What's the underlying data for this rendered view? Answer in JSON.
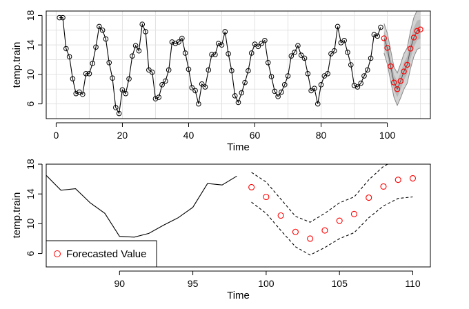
{
  "chart_data": [
    {
      "type": "line",
      "title": "",
      "xlabel": "Time",
      "ylabel": "temp.train",
      "xlim": [
        -3,
        113
      ],
      "ylim": [
        4,
        18.6
      ],
      "xticks": [
        0,
        20,
        40,
        60,
        80,
        100
      ],
      "yticks": [
        6,
        10,
        14,
        18
      ],
      "grid": true,
      "series": [
        {
          "name": "observed",
          "color": "#000000",
          "x": [
            1,
            2,
            3,
            4,
            5,
            6,
            7,
            8,
            9,
            10,
            11,
            12,
            13,
            14,
            15,
            16,
            17,
            18,
            19,
            20,
            21,
            22,
            23,
            24,
            25,
            26,
            27,
            28,
            29,
            30,
            31,
            32,
            33,
            34,
            35,
            36,
            37,
            38,
            39,
            40,
            41,
            42,
            43,
            44,
            45,
            46,
            47,
            48,
            49,
            50,
            51,
            52,
            53,
            54,
            55,
            56,
            57,
            58,
            59,
            60,
            61,
            62,
            63,
            64,
            65,
            66,
            67,
            68,
            69,
            70,
            71,
            72,
            73,
            74,
            75,
            76,
            77,
            78,
            79,
            80,
            81,
            82,
            83,
            84,
            85,
            86,
            87,
            88,
            89,
            90,
            91,
            92,
            93,
            94,
            95,
            96,
            97,
            98
          ],
          "y": [
            17.7,
            17.7,
            13.5,
            12.4,
            9.4,
            7.4,
            7.6,
            7.3,
            10.1,
            10.1,
            11.5,
            13.7,
            16.5,
            16.0,
            14.8,
            11.6,
            9.5,
            5.5,
            4.7,
            7.9,
            7.4,
            9.4,
            12.5,
            13.9,
            13.2,
            16.8,
            15.8,
            10.6,
            10.3,
            6.7,
            6.9,
            8.6,
            9.1,
            10.6,
            14.4,
            14.2,
            14.4,
            14.9,
            12.9,
            10.7,
            8.2,
            7.8,
            6.0,
            8.7,
            8.3,
            10.6,
            12.7,
            12.7,
            14.2,
            14.0,
            15.8,
            12.8,
            10.5,
            7.1,
            6.2,
            7.5,
            8.9,
            10.5,
            12.9,
            14.1,
            13.8,
            14.2,
            14.6,
            11.6,
            9.7,
            7.7,
            7.0,
            7.6,
            8.6,
            9.8,
            12.5,
            13.0,
            13.9,
            12.6,
            12.2,
            10.1,
            7.8,
            8.1,
            6.0,
            8.6,
            9.8,
            10.1,
            12.8,
            13.2,
            16.5,
            14.3,
            14.6,
            13.0,
            11.3,
            8.5,
            8.3,
            8.8,
            9.8,
            10.6,
            12.2,
            15.4,
            15.2,
            16.4
          ]
        },
        {
          "name": "Forecasted Value",
          "color": "#ff0000",
          "x": [
            99,
            100,
            101,
            102,
            103,
            104,
            105,
            106,
            107,
            108,
            109,
            110
          ],
          "y": [
            14.9,
            13.6,
            11.1,
            8.9,
            8.0,
            9.1,
            10.4,
            11.3,
            13.5,
            15.0,
            15.9,
            16.1
          ]
        },
        {
          "name": "lower bound",
          "color": "#000000",
          "x": [
            99,
            100,
            101,
            102,
            103,
            104,
            105,
            106,
            107,
            108,
            109,
            110
          ],
          "y": [
            12.9,
            11.4,
            9.1,
            6.9,
            5.8,
            6.8,
            8.0,
            8.8,
            10.8,
            12.4,
            13.4,
            13.6
          ]
        },
        {
          "name": "upper bound",
          "color": "#000000",
          "x": [
            99,
            100,
            101,
            102,
            103,
            104,
            105,
            106,
            107,
            108,
            109,
            110
          ],
          "y": [
            16.9,
            15.6,
            13.3,
            11.0,
            10.2,
            11.4,
            12.8,
            13.6,
            15.9,
            17.7,
            18.7,
            18.8
          ]
        }
      ]
    },
    {
      "type": "line",
      "title": "",
      "xlabel": "Time",
      "ylabel": "temp.train",
      "xlim": [
        85,
        111.2
      ],
      "ylim": [
        4.2,
        18
      ],
      "xticks": [
        90,
        95,
        100,
        105,
        110
      ],
      "yticks": [
        6,
        10,
        14,
        18
      ],
      "grid": false,
      "legend": {
        "position": "bottom-left",
        "label": "Forecasted Value"
      },
      "series": [
        {
          "name": "observed",
          "color": "#000000",
          "x": [
            85,
            86,
            87,
            88,
            89,
            90,
            91,
            92,
            93,
            94,
            95,
            96,
            97,
            98
          ],
          "y": [
            16.5,
            14.5,
            14.7,
            12.8,
            11.4,
            8.3,
            8.2,
            8.7,
            9.8,
            10.8,
            12.2,
            15.4,
            15.2,
            16.4
          ]
        },
        {
          "name": "Forecasted Value",
          "color": "#ff0000",
          "x": [
            99,
            100,
            101,
            102,
            103,
            104,
            105,
            106,
            107,
            108,
            109,
            110
          ],
          "y": [
            14.9,
            13.6,
            11.1,
            8.9,
            8.0,
            9.1,
            10.4,
            11.3,
            13.5,
            15.0,
            15.9,
            16.1
          ]
        },
        {
          "name": "lower bound",
          "color": "#000000",
          "x": [
            99,
            100,
            101,
            102,
            103,
            104,
            105,
            106,
            107,
            108,
            109,
            110
          ],
          "y": [
            12.9,
            11.4,
            9.1,
            6.9,
            5.8,
            6.8,
            8.0,
            8.8,
            10.8,
            12.4,
            13.4,
            13.6
          ]
        },
        {
          "name": "upper bound",
          "color": "#000000",
          "x": [
            99,
            100,
            101,
            102,
            103,
            104,
            105,
            106,
            107,
            108,
            109,
            110
          ],
          "y": [
            16.9,
            15.6,
            13.3,
            11.0,
            10.2,
            11.4,
            12.8,
            13.6,
            15.9,
            17.7,
            18.7,
            18.8
          ]
        }
      ]
    }
  ]
}
